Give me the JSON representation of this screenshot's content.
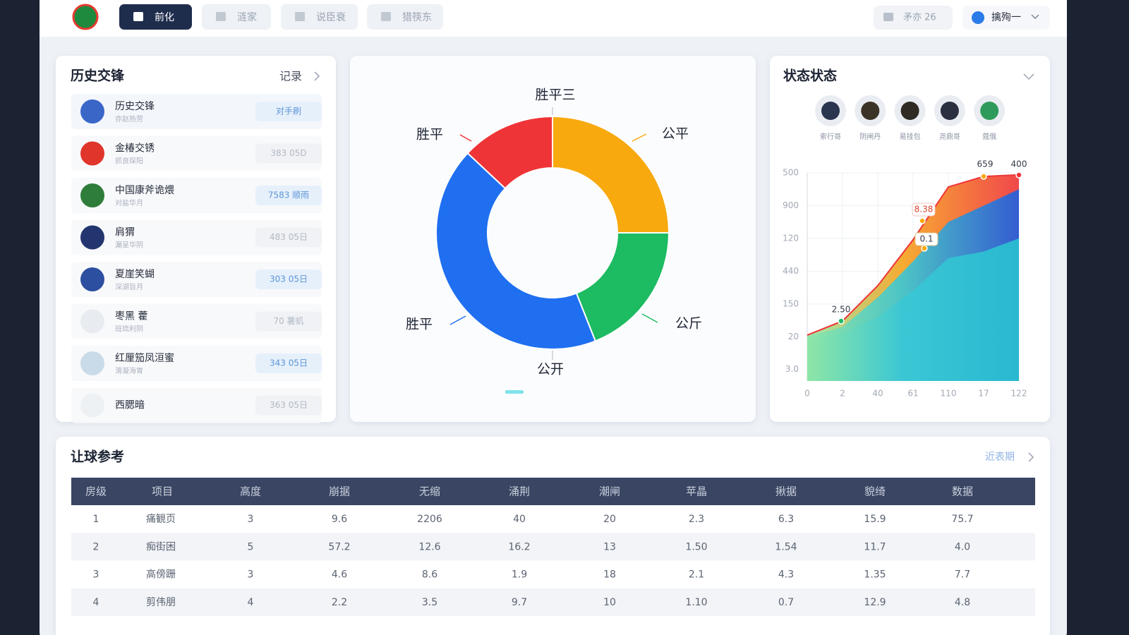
{
  "nav": {
    "tabs": [
      "前化",
      "涟家",
      "说臣衰",
      "猎筷东"
    ],
    "counter": "矛亦 26",
    "user": "擒殉一"
  },
  "history": {
    "title": "历史交锋",
    "link": "记录",
    "rows": [
      {
        "name": "历史交锋",
        "sub": "亦赵热劳",
        "badge": "对手刷"
      },
      {
        "name": "金椿交锈",
        "sub": "抓良琛阳",
        "badge": "383 05D"
      },
      {
        "name": "中国康斧诡煨",
        "sub": "对盐华月",
        "badge": "7583 顺雨"
      },
      {
        "name": "肩猬",
        "sub": "漏呈华阴",
        "badge": "483 05日"
      },
      {
        "name": "夏崖笑蝴",
        "sub": "深湖旨月",
        "badge": "303 05日"
      },
      {
        "name": "枣黑 藿",
        "sub": "班琉利阴",
        "badge": "70 薯虮"
      },
      {
        "name": "红厘笳凤洹蜜",
        "sub": "滑凝海胃",
        "badge": "343 05日"
      },
      {
        "name": "西腮暗",
        "badge": "363 05日"
      }
    ]
  },
  "donut": {
    "type": "pie",
    "segments": [
      {
        "name": "公平",
        "color": "#f7a90e",
        "value": 25
      },
      {
        "name": "公斤",
        "color": "#1dbb62",
        "value": 19
      },
      {
        "name": "胜平",
        "color": "#1f6ff0",
        "value": 43
      },
      {
        "name": "胜平",
        "color": "#ef3437",
        "value": 13
      }
    ],
    "annotations": [
      "胜平三",
      "公开"
    ]
  },
  "status": {
    "title": "状态状态",
    "players": [
      "索行哥",
      "阴闸丹",
      "易挂包",
      "尧鼎哥",
      "蔻俄"
    ],
    "chart": {
      "type": "area",
      "categories": [
        "0",
        "2",
        "40",
        "61",
        "110",
        "17",
        "122"
      ],
      "ylim": [
        -0.35,
        6
      ],
      "yticks": [
        {
          "value": 0,
          "label": "3.0"
        },
        {
          "value": 1,
          "label": "20"
        },
        {
          "value": 2,
          "label": "150"
        },
        {
          "value": 3,
          "label": "440"
        },
        {
          "value": 4,
          "label": "120"
        },
        {
          "value": 5,
          "label": "900"
        },
        {
          "value": 6,
          "label": "500"
        }
      ],
      "series": [
        {
          "color": "#ef3437",
          "values": [
            1.05,
            1.48,
            2.56,
            3.96,
            5.57,
            5.89,
            5.94
          ]
        },
        {
          "color": "#1f5fe0",
          "values": [
            1.0,
            1.3,
            2.2,
            3.3,
            4.5,
            5.0,
            5.5
          ]
        },
        {
          "color": "#27c2d0",
          "values": [
            0.9,
            1.1,
            1.6,
            2.4,
            3.4,
            3.6,
            4.0
          ]
        }
      ],
      "annotations": [
        "2.50",
        "8.38",
        "0.1",
        "659",
        "400"
      ]
    }
  },
  "table": {
    "title": "让球参考",
    "link": "近表期",
    "header": [
      "房级",
      "项目",
      "高度",
      "崩据",
      "无缩",
      "涌荆",
      "潮闸",
      "苹晶",
      "揪据",
      "貌绮",
      "数据"
    ],
    "rows": [
      [
        "1",
        "痛観页",
        "3",
        "9.6",
        "2206",
        "40",
        "20",
        "2.3",
        "6.3",
        "15.9",
        "75.7"
      ],
      [
        "2",
        "痴街困",
        "5",
        "57.2",
        "12.6",
        "16.2",
        "13",
        "1.50",
        "1.54",
        "11.7",
        "4.0"
      ],
      [
        "3",
        "高傍跚",
        "3",
        "4.6",
        "8.6",
        "1.9",
        "18",
        "2.1",
        "4.3",
        "1.35",
        "7.7"
      ],
      [
        "4",
        "剪伟朋",
        "4",
        "2.2",
        "3.5",
        "9.7",
        "10",
        "1.10",
        "0.7",
        "12.9",
        "4.8"
      ]
    ]
  }
}
